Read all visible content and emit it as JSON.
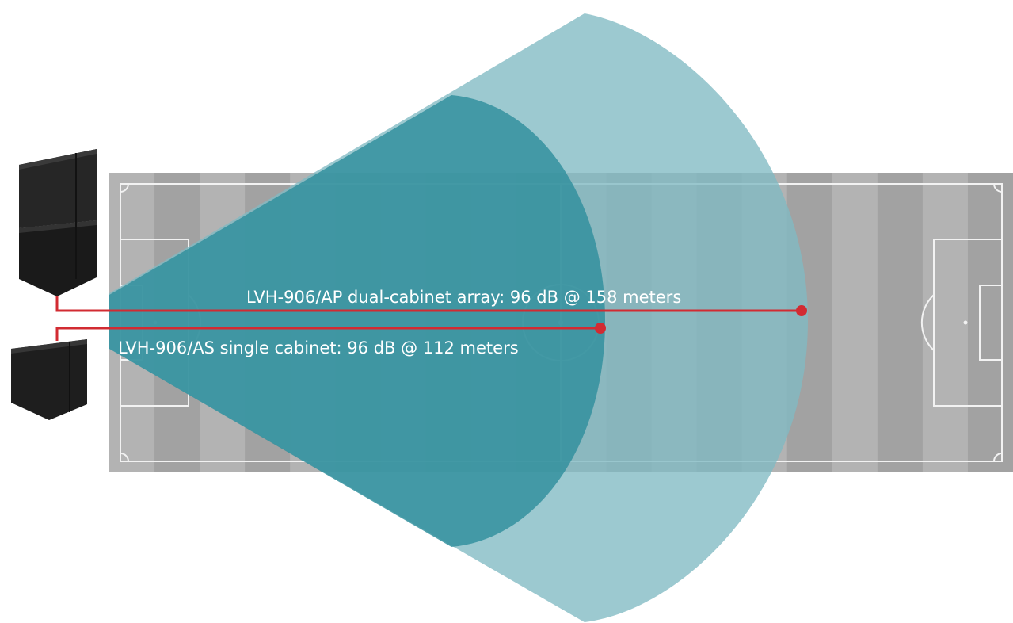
{
  "labels": {
    "dual_array": "LVH-906/AP dual-cabinet array: 96 dB @ 158 meters",
    "single_cabinet": "LVH-906/AS single cabinet: 96 dB @ 112 meters"
  },
  "colors": {
    "large_coverage": "#80bac3",
    "small_coverage": "#2f8f9c",
    "pointer_line": "#d22b32",
    "field_light": "#b4b4b4",
    "field_dark": "#a2a2a2",
    "field_lines": "#ffffff",
    "speaker_body": "#1c1c1c"
  }
}
